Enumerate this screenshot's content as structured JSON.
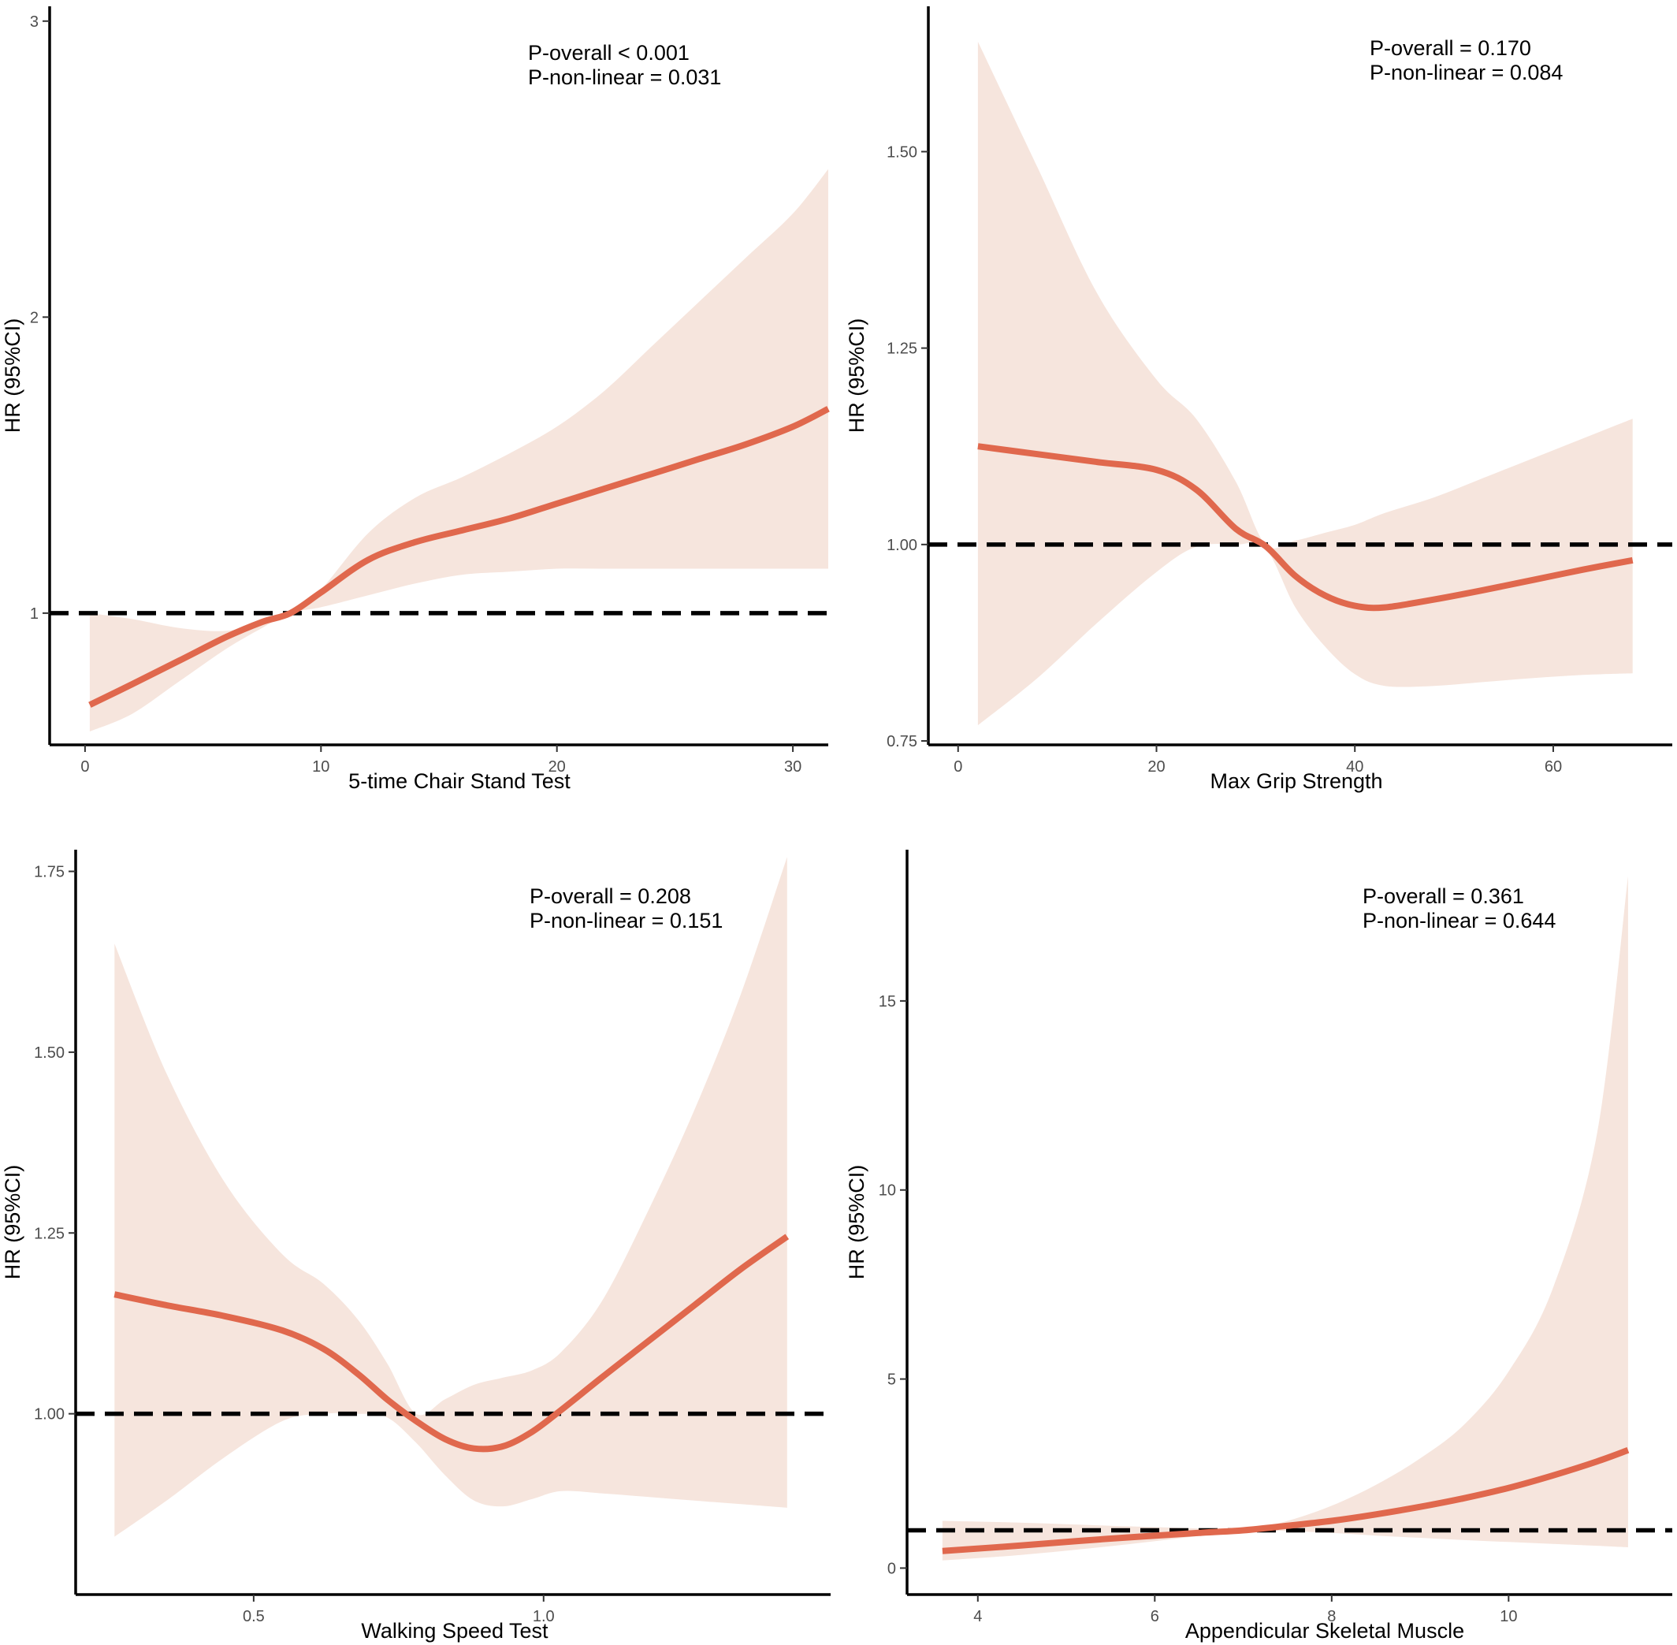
{
  "colors": {
    "ci_band": "#f6e5dd",
    "curve": "#e0684d",
    "reference": "#000000",
    "axis": "#000000",
    "tick_label": "#4d4d4d"
  },
  "chart_data": [
    {
      "type": "line",
      "title": "",
      "xlabel": "5-time Chair Stand Test",
      "ylabel": "HR (95%CI)",
      "xlim": [
        -1.5,
        31.5
      ],
      "ylim": [
        0.555,
        3.05
      ],
      "xticks": [
        0,
        10,
        20,
        30
      ],
      "xtick_labels": [
        "0",
        "10",
        "20",
        "30"
      ],
      "yticks": [
        1,
        2,
        3
      ],
      "ytick_labels": [
        "1",
        "2",
        "3"
      ],
      "reference_line": 1,
      "annotation": [
        "P-overall < 0.001",
        "P-non-linear = 0.031"
      ],
      "grid": false,
      "x": [
        0.2,
        2,
        4,
        6,
        7.5,
        8.7,
        10,
        12,
        14,
        16,
        18,
        20,
        22,
        24,
        26,
        28,
        30,
        31.5
      ],
      "hr": [
        0.69,
        0.76,
        0.84,
        0.92,
        0.97,
        1.0,
        1.07,
        1.18,
        1.24,
        1.28,
        1.32,
        1.37,
        1.42,
        1.47,
        1.52,
        1.57,
        1.63,
        1.69
      ],
      "ci_lower": [
        0.6,
        0.66,
        0.77,
        0.88,
        0.95,
        1.0,
        1.02,
        1.06,
        1.1,
        1.13,
        1.14,
        1.15,
        1.15,
        1.15,
        1.15,
        1.15,
        1.15,
        1.15
      ],
      "ci_upper": [
        1.0,
        0.98,
        0.95,
        0.94,
        0.97,
        1.0,
        1.08,
        1.27,
        1.39,
        1.46,
        1.54,
        1.63,
        1.75,
        1.9,
        2.05,
        2.2,
        2.35,
        2.5
      ]
    },
    {
      "type": "line",
      "title": "",
      "xlabel": "Max Grip Strength",
      "ylabel": "HR (95%CI)",
      "xlim": [
        -3,
        72
      ],
      "ylim": [
        0.745,
        1.685
      ],
      "xticks": [
        0,
        20,
        40,
        60
      ],
      "xtick_labels": [
        "0",
        "20",
        "40",
        "60"
      ],
      "yticks": [
        0.75,
        1.0,
        1.25,
        1.5
      ],
      "ytick_labels": [
        "0.75",
        "1.00",
        "1.25",
        "1.50"
      ],
      "reference_line": 1,
      "annotation": [
        "P-overall = 0.170",
        "P-non-linear = 0.084"
      ],
      "grid": false,
      "x": [
        2,
        8,
        14,
        20,
        24,
        28,
        31,
        34,
        37,
        40,
        43,
        48,
        53,
        58,
        63,
        68
      ],
      "hr": [
        1.125,
        1.115,
        1.105,
        1.095,
        1.07,
        1.02,
        0.998,
        0.96,
        0.935,
        0.922,
        0.92,
        0.93,
        0.942,
        0.955,
        0.968,
        0.98
      ],
      "ci_lower": [
        0.77,
        0.83,
        0.9,
        0.965,
        0.997,
        1.0,
        0.995,
        0.92,
        0.87,
        0.835,
        0.82,
        0.82,
        0.825,
        0.83,
        0.834,
        0.836
      ],
      "ci_upper": [
        1.64,
        1.48,
        1.32,
        1.21,
        1.16,
        1.08,
        1.0,
        1.005,
        1.015,
        1.025,
        1.04,
        1.06,
        1.085,
        1.11,
        1.135,
        1.16
      ]
    },
    {
      "type": "line",
      "title": "",
      "xlabel": "Walking Speed Test",
      "ylabel": "HR (95%CI)",
      "xlim": [
        0.193,
        1.495
      ],
      "ylim": [
        0.75,
        1.78
      ],
      "xticks": [
        0.5,
        1.0
      ],
      "xtick_labels": [
        "0.5",
        "1.0"
      ],
      "yticks": [
        1.0,
        1.25,
        1.5,
        1.75
      ],
      "ytick_labels": [
        "1.00",
        "1.25",
        "1.50",
        "1.75"
      ],
      "reference_line": 1,
      "annotation": [
        "P-overall = 0.208",
        "P-non-linear = 0.151"
      ],
      "grid": false,
      "x": [
        0.26,
        0.35,
        0.45,
        0.55,
        0.62,
        0.68,
        0.73,
        0.78,
        0.83,
        0.88,
        0.93,
        0.98,
        1.03,
        1.1,
        1.18,
        1.26,
        1.34,
        1.42
      ],
      "hr": [
        1.165,
        1.15,
        1.135,
        1.115,
        1.09,
        1.055,
        1.02,
        0.99,
        0.965,
        0.952,
        0.955,
        0.975,
        1.005,
        1.05,
        1.1,
        1.15,
        1.2,
        1.245
      ],
      "ci_lower": [
        0.83,
        0.88,
        0.94,
        0.99,
        1.0,
        1.0,
        0.995,
        0.96,
        0.915,
        0.88,
        0.872,
        0.882,
        0.893,
        0.89,
        0.885,
        0.88,
        0.875,
        0.87
      ],
      "ci_upper": [
        1.65,
        1.47,
        1.32,
        1.22,
        1.18,
        1.13,
        1.07,
        1.0,
        1.02,
        1.04,
        1.05,
        1.06,
        1.085,
        1.155,
        1.28,
        1.42,
        1.58,
        1.77
      ]
    },
    {
      "type": "line",
      "title": "",
      "xlabel": "Appendicular Skeletal Muscle",
      "ylabel": "HR (95%CI)",
      "xlim": [
        3.2,
        11.85
      ],
      "ylim": [
        -0.7,
        19.0
      ],
      "xticks": [
        4,
        6,
        8,
        10
      ],
      "xtick_labels": [
        "4",
        "6",
        "8",
        "10"
      ],
      "yticks": [
        0,
        5,
        10,
        15
      ],
      "ytick_labels": [
        "0",
        "5",
        "10",
        "15"
      ],
      "reference_line": 1,
      "annotation": [
        "P-overall = 0.361",
        "P-non-linear = 0.644"
      ],
      "grid": false,
      "x": [
        3.6,
        4.5,
        5.5,
        6.5,
        7.0,
        7.5,
        8.0,
        8.5,
        9.0,
        9.5,
        10.0,
        10.5,
        11.0,
        11.35
      ],
      "hr": [
        0.45,
        0.6,
        0.78,
        0.93,
        1.0,
        1.12,
        1.25,
        1.42,
        1.62,
        1.85,
        2.12,
        2.45,
        2.82,
        3.12
      ],
      "ci_lower": [
        0.2,
        0.35,
        0.58,
        0.85,
        1.0,
        0.98,
        0.93,
        0.86,
        0.8,
        0.74,
        0.69,
        0.64,
        0.59,
        0.55
      ],
      "ci_upper": [
        1.25,
        1.2,
        1.12,
        1.05,
        1.0,
        1.25,
        1.65,
        2.2,
        2.9,
        3.8,
        5.2,
        7.4,
        11.5,
        18.3
      ]
    }
  ]
}
